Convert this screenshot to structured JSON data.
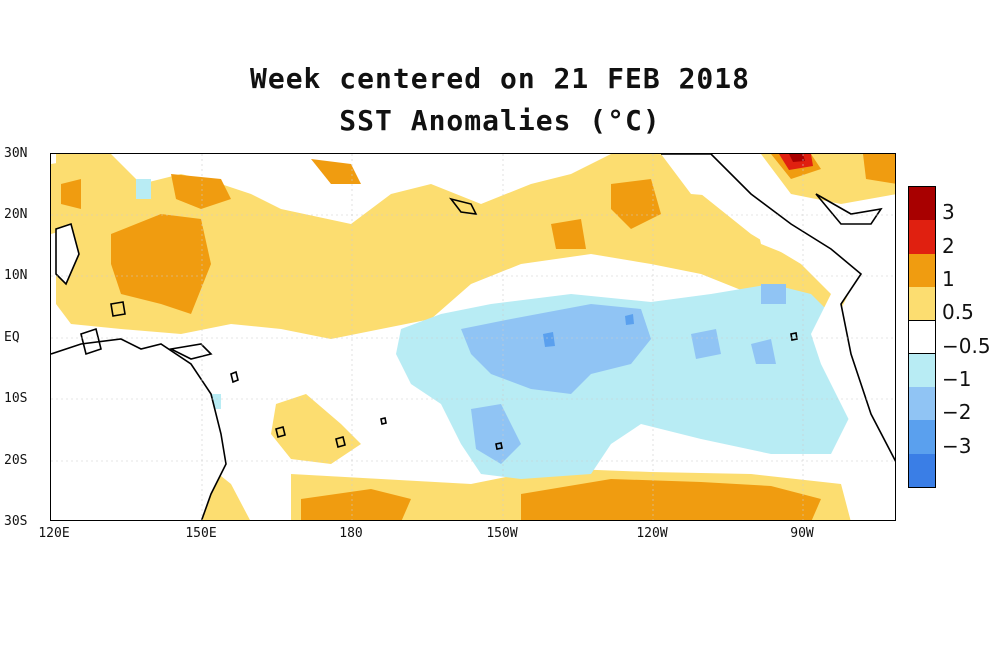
{
  "title": "Week centered on 21 FEB 2018",
  "subtitle": "SST Anomalies (°C)",
  "lat_labels": [
    "30N",
    "20N",
    "10N",
    "EQ",
    "10S",
    "20S",
    "30S"
  ],
  "lon_labels": [
    "120E",
    "150E",
    "180",
    "150W",
    "120W",
    "90W"
  ],
  "legend": {
    "labels": [
      "3",
      "2",
      "1",
      "0.5",
      "−0.5",
      "−1",
      "−2",
      "−3"
    ],
    "colors": [
      "#a80000",
      "#e02010",
      "#f09c10",
      "#fcdd70",
      "#ffffff",
      "#b8ecf4",
      "#90c4f4",
      "#5aa0ee",
      "#3a7ee6"
    ]
  },
  "colors": {
    "warm_05": "#fcdd70",
    "warm_1": "#f09c10",
    "warm_2": "#e02010",
    "warm_3": "#a80000",
    "cool_05": "#b8ecf4",
    "cool_1": "#90c4f4",
    "cool_2": "#5aa0ee",
    "land": "#ffffff",
    "coast": "#000000"
  }
}
